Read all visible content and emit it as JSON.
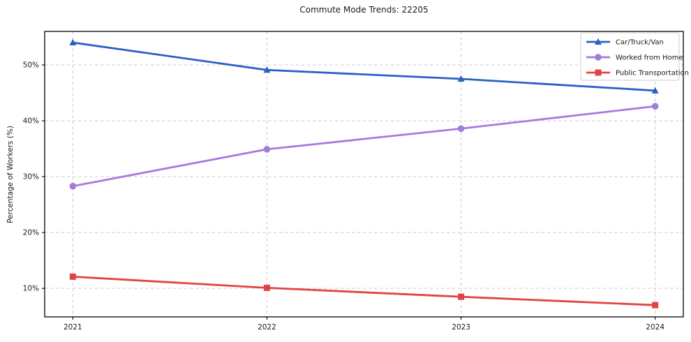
{
  "chart_data": {
    "type": "line",
    "title": "Commute Mode Trends: 22205",
    "xlabel": "",
    "ylabel": "Percentage of Workers (%)",
    "x": [
      2021,
      2022,
      2023,
      2024
    ],
    "x_tick_labels": [
      "2021",
      "2022",
      "2023",
      "2024"
    ],
    "series": [
      {
        "name": "Car/Truck/Van",
        "values": [
          54.0,
          49.1,
          47.5,
          45.4
        ],
        "color": "#2b60c4",
        "marker": "triangle"
      },
      {
        "name": "Worked from Home",
        "values": [
          28.3,
          34.9,
          38.6,
          42.6
        ],
        "color": "#a47bdd",
        "marker": "circle"
      },
      {
        "name": "Public Transportation",
        "values": [
          12.1,
          10.1,
          8.5,
          7.0
        ],
        "color": "#e14444",
        "marker": "square"
      }
    ],
    "yticks": [
      10,
      20,
      30,
      40,
      50
    ],
    "ytick_labels": [
      "10%",
      "20%",
      "30%",
      "40%",
      "50%"
    ],
    "ylim": [
      4.9,
      56.0
    ],
    "xlim": [
      2020.855,
      2024.145
    ],
    "grid": "dashed",
    "legend_position": "upper right"
  }
}
